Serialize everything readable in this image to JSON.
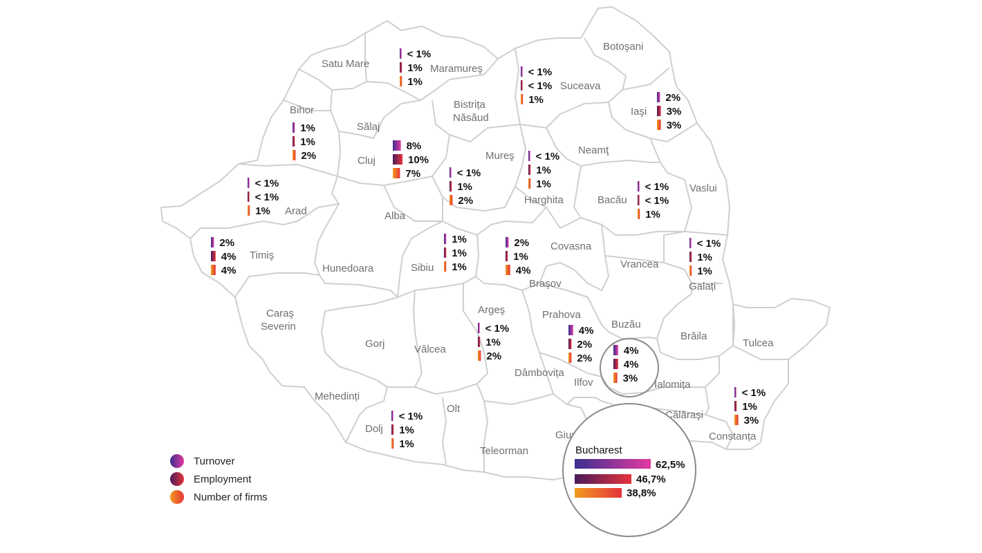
{
  "colors": {
    "turnover": [
      "#3b2f8f",
      "#e23aa0"
    ],
    "employment": [
      "#4a1c5a",
      "#e5333b"
    ],
    "firms": [
      "#f39a1d",
      "#e5333b"
    ],
    "border": "#cfcfcf",
    "label": "#6f6f6f"
  },
  "legend": [
    {
      "key": "turnover",
      "label": "Turnover"
    },
    {
      "key": "employment",
      "label": "Employment"
    },
    {
      "key": "firms",
      "label": "Number of firms"
    }
  ],
  "counties": [
    {
      "name": "Satu Mare"
    },
    {
      "name": "Maramureş"
    },
    {
      "name": "Botoşani"
    },
    {
      "name": "Suceava"
    },
    {
      "name": "Bihor"
    },
    {
      "name": "Sălaj"
    },
    {
      "name": "Bistrița"
    },
    {
      "name": "Năsăud"
    },
    {
      "name": "Iaşi"
    },
    {
      "name": "Cluj"
    },
    {
      "name": "Mureş"
    },
    {
      "name": "Neamţ"
    },
    {
      "name": "Arad"
    },
    {
      "name": "Alba"
    },
    {
      "name": "Harghita"
    },
    {
      "name": "Bacău"
    },
    {
      "name": "Vaslui"
    },
    {
      "name": "Timiş"
    },
    {
      "name": "Hunedoara"
    },
    {
      "name": "Sibiu"
    },
    {
      "name": "Covasna"
    },
    {
      "name": "Vrancea"
    },
    {
      "name": "Galați"
    },
    {
      "name": "Braşov"
    },
    {
      "name": "Caraş"
    },
    {
      "name": "Severin"
    },
    {
      "name": "Argeş"
    },
    {
      "name": "Prahova"
    },
    {
      "name": "Buzău"
    },
    {
      "name": "Gorj"
    },
    {
      "name": "Vâlcea"
    },
    {
      "name": "Brăila"
    },
    {
      "name": "Tulcea"
    },
    {
      "name": "Dâmbovița"
    },
    {
      "name": "Ilfov"
    },
    {
      "name": "Ialomița"
    },
    {
      "name": "Mehedinți"
    },
    {
      "name": "Olt"
    },
    {
      "name": "Călăraşi"
    },
    {
      "name": "Dolj"
    },
    {
      "name": "Teleorman"
    },
    {
      "name": "Giurgiu"
    },
    {
      "name": "Constanța"
    }
  ],
  "stats": [
    {
      "county": "Maramureş",
      "turnover": "< 1%",
      "employment": "1%",
      "firms": "1%",
      "t": 0.5,
      "e": 1,
      "f": 1
    },
    {
      "county": "Suceava",
      "turnover": "< 1%",
      "employment": "< 1%",
      "firms": "1%",
      "t": 0.5,
      "e": 0.5,
      "f": 1
    },
    {
      "county": "Iaşi",
      "turnover": "2%",
      "employment": "3%",
      "firms": "3%",
      "t": 2,
      "e": 3,
      "f": 3
    },
    {
      "county": "Bihor",
      "turnover": "1%",
      "employment": "1%",
      "firms": "2%",
      "t": 1,
      "e": 1,
      "f": 2
    },
    {
      "county": "Cluj",
      "turnover": "8%",
      "employment": "10%",
      "firms": "7%",
      "t": 8,
      "e": 10,
      "f": 7
    },
    {
      "county": "Mureş",
      "turnover": "< 1%",
      "employment": "1%",
      "firms": "2%",
      "t": 0.5,
      "e": 1,
      "f": 2
    },
    {
      "county": "Harghita",
      "turnover": "< 1%",
      "employment": "1%",
      "firms": "1%",
      "t": 0.5,
      "e": 1,
      "f": 1
    },
    {
      "county": "Arad",
      "turnover": "< 1%",
      "employment": "< 1%",
      "firms": "1%",
      "t": 0.5,
      "e": 0.5,
      "f": 1
    },
    {
      "county": "Bacău",
      "turnover": "< 1%",
      "employment": "< 1%",
      "firms": "1%",
      "t": 0.5,
      "e": 0.5,
      "f": 1
    },
    {
      "county": "Timiş",
      "turnover": "2%",
      "employment": "4%",
      "firms": "4%",
      "t": 2,
      "e": 4,
      "f": 4
    },
    {
      "county": "Sibiu",
      "turnover": "1%",
      "employment": "1%",
      "firms": "1%",
      "t": 1,
      "e": 1,
      "f": 1
    },
    {
      "county": "Braşov",
      "turnover": "2%",
      "employment": "1%",
      "firms": "4%",
      "t": 2,
      "e": 1,
      "f": 4
    },
    {
      "county": "Galați",
      "turnover": "< 1%",
      "employment": "1%",
      "firms": "1%",
      "t": 0.5,
      "e": 1,
      "f": 1
    },
    {
      "county": "Argeş",
      "turnover": "< 1%",
      "employment": "1%",
      "firms": "2%",
      "t": 0.5,
      "e": 1,
      "f": 2
    },
    {
      "county": "Prahova",
      "turnover": "4%",
      "employment": "2%",
      "firms": "2%",
      "t": 4,
      "e": 2,
      "f": 2
    },
    {
      "county": "Ilfov",
      "turnover": "4%",
      "employment": "4%",
      "firms": "3%",
      "t": 4,
      "e": 4,
      "f": 3
    },
    {
      "county": "Constanța",
      "turnover": "< 1%",
      "employment": "1%",
      "firms": "3%",
      "t": 0.5,
      "e": 1,
      "f": 3
    },
    {
      "county": "Dolj",
      "turnover": "< 1%",
      "employment": "1%",
      "firms": "1%",
      "t": 0.5,
      "e": 1,
      "f": 1
    }
  ],
  "bucharest": {
    "name": "Bucharest",
    "turnover": "62,5%",
    "employment": "46,7%",
    "firms": "38,8%",
    "t": 62.5,
    "e": 46.7,
    "f": 38.8
  }
}
